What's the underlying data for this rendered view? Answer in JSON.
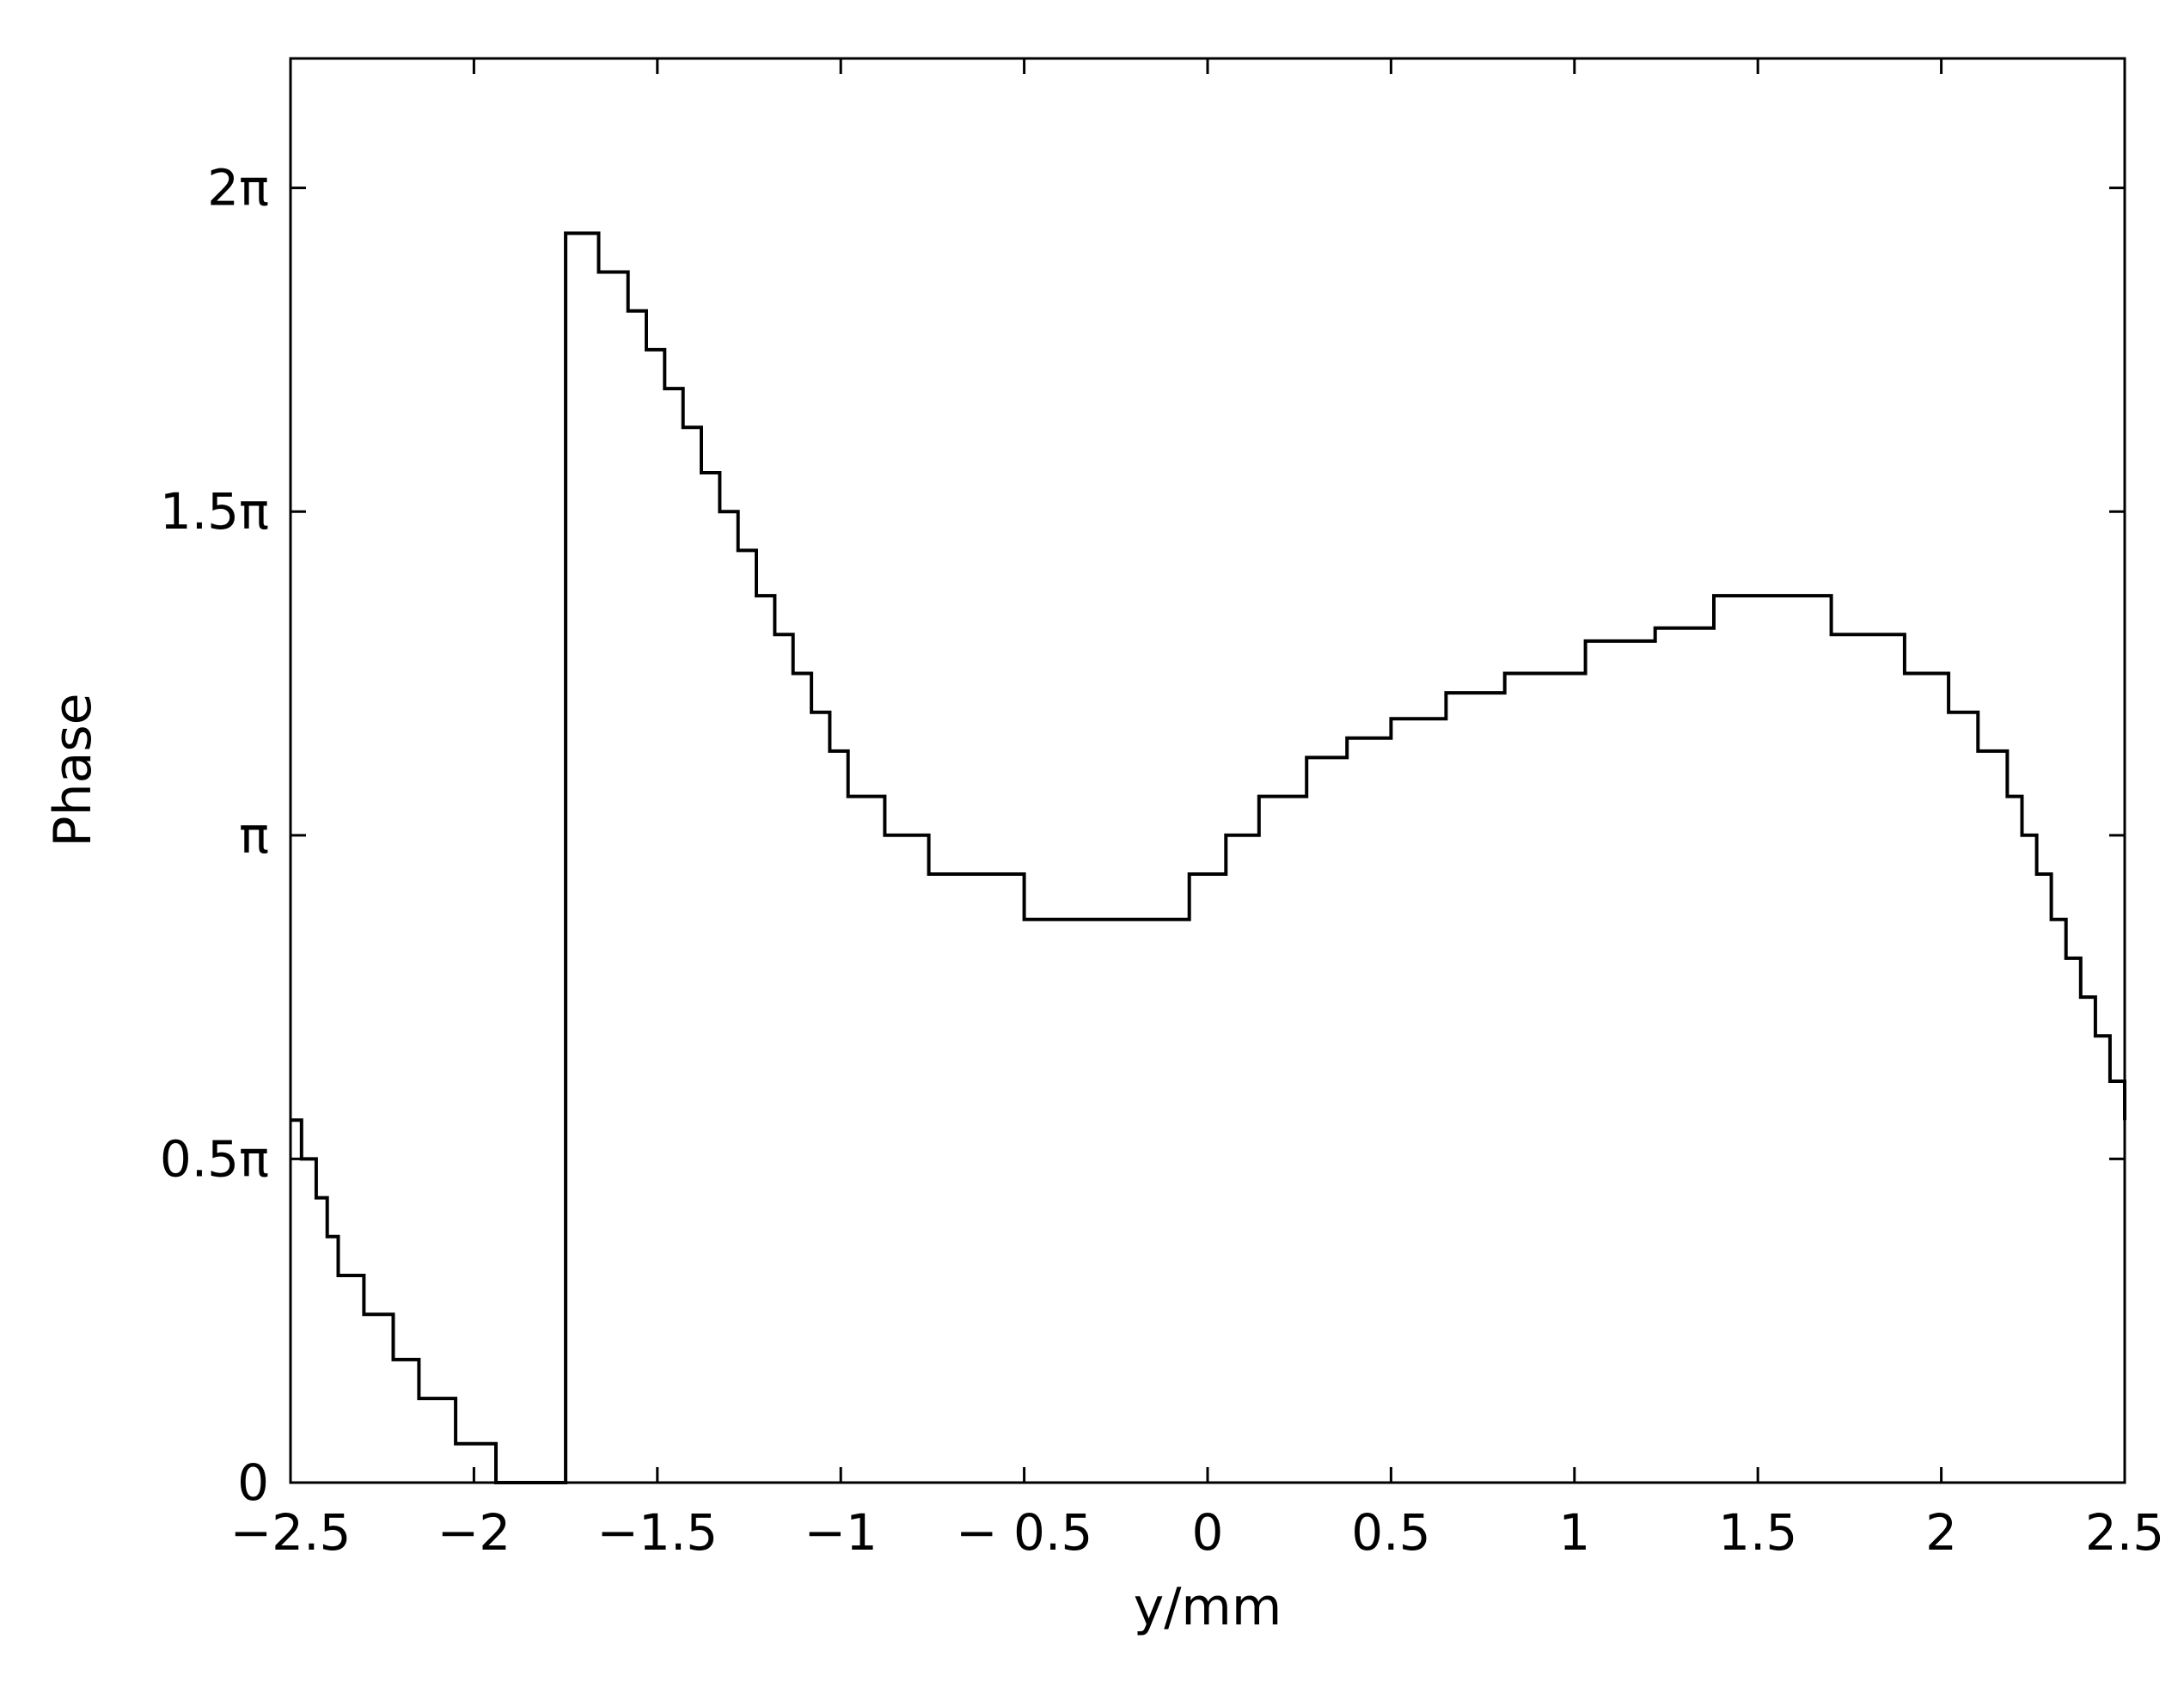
{
  "chart_data": {
    "type": "line",
    "title": "",
    "xlabel": "y/mm",
    "ylabel": "Phase",
    "xlim": [
      -2.5,
      2.5
    ],
    "ylim": [
      0,
      2.2
    ],
    "y_unit": "π",
    "grid": false,
    "legend": "none",
    "x_ticks": [
      {
        "value": -2.5,
        "label": "−2.5"
      },
      {
        "value": -2,
        "label": "−2"
      },
      {
        "value": -1.5,
        "label": "−1.5"
      },
      {
        "value": -1,
        "label": "−1"
      },
      {
        "value": -0.5,
        "label": "− 0.5"
      },
      {
        "value": 0,
        "label": "0"
      },
      {
        "value": 0.5,
        "label": "0.5"
      },
      {
        "value": 1,
        "label": "1"
      },
      {
        "value": 1.5,
        "label": "1.5"
      },
      {
        "value": 2,
        "label": "2"
      },
      {
        "value": 2.5,
        "label": "2.5"
      }
    ],
    "y_ticks": [
      {
        "value": 0,
        "label": "0"
      },
      {
        "value": 0.5,
        "label": "0.5π"
      },
      {
        "value": 1,
        "label": "π"
      },
      {
        "value": 1.5,
        "label": "1.5π"
      },
      {
        "value": 2,
        "label": "2π"
      }
    ],
    "series": [
      {
        "color": "#000000",
        "x": [
          -2.5,
          -2.47,
          -2.43,
          -2.4,
          -2.37,
          -2.33,
          -2.3,
          -2.26,
          -2.22,
          -2.19,
          -2.15,
          -2.1,
          -2.05,
          -2.0,
          -1.94,
          -1.88,
          -1.83,
          -1.75,
          -1.75,
          -1.72,
          -1.66,
          -1.58,
          -1.53,
          -1.48,
          -1.43,
          -1.38,
          -1.33,
          -1.28,
          -1.23,
          -1.18,
          -1.13,
          -1.08,
          -1.03,
          -0.98,
          -0.93,
          -0.88,
          -0.83,
          -0.76,
          -0.69,
          -0.6,
          -0.5,
          -0.42,
          -0.34,
          -0.26,
          -0.18,
          -0.1,
          -0.05,
          0.0,
          0.05,
          0.1,
          0.14,
          0.18,
          0.22,
          0.27,
          0.32,
          0.38,
          0.44,
          0.5,
          0.57,
          0.65,
          0.73,
          0.81,
          0.9,
          0.99,
          1.03,
          1.08,
          1.15,
          1.22,
          1.3,
          1.38,
          1.46,
          1.54,
          1.62,
          1.7,
          1.78,
          1.86,
          1.9,
          1.96,
          2.02,
          2.06,
          2.1,
          2.14,
          2.18,
          2.22,
          2.26,
          2.3,
          2.34,
          2.38,
          2.42,
          2.46,
          2.5
        ],
        "y": [
          0.56,
          0.5,
          0.44,
          0.38,
          0.32,
          0.32,
          0.26,
          0.26,
          0.19,
          0.19,
          0.13,
          0.13,
          0.06,
          0.06,
          0.0,
          0.0,
          0.0,
          0.0,
          1.93,
          1.93,
          1.87,
          1.81,
          1.75,
          1.69,
          1.63,
          1.56,
          1.5,
          1.44,
          1.37,
          1.31,
          1.25,
          1.19,
          1.13,
          1.06,
          1.06,
          1.0,
          1.0,
          0.94,
          0.94,
          0.94,
          0.87,
          0.87,
          0.87,
          0.87,
          0.87,
          0.87,
          0.94,
          0.94,
          1.0,
          1.0,
          1.06,
          1.06,
          1.06,
          1.12,
          1.12,
          1.15,
          1.15,
          1.18,
          1.18,
          1.22,
          1.22,
          1.25,
          1.25,
          1.25,
          1.3,
          1.3,
          1.3,
          1.32,
          1.32,
          1.37,
          1.37,
          1.37,
          1.37,
          1.31,
          1.31,
          1.31,
          1.25,
          1.25,
          1.19,
          1.19,
          1.13,
          1.13,
          1.06,
          1.0,
          0.94,
          0.87,
          0.81,
          0.75,
          0.69,
          0.62,
          0.56
        ]
      }
    ]
  }
}
